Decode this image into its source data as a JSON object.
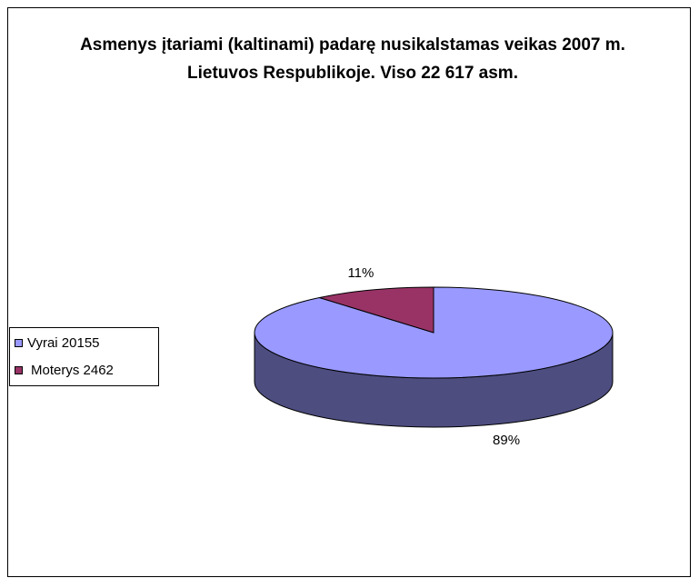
{
  "chart_data": {
    "type": "pie",
    "title": "Asmenys įtariami (kaltinami) padarę nusikalstamas veikas 2007 m. Lietuvos Respublikoje. Viso  22 617 asm.",
    "categories": [
      "Vyrai 20155",
      "Moterys 2462"
    ],
    "values": [
      89,
      11
    ],
    "value_labels": [
      "89%",
      "11%"
    ],
    "colors": [
      "#9999ff",
      "#993366"
    ],
    "side_colors": [
      "#4d4d80",
      "#4d1a33"
    ],
    "legend": "left"
  }
}
